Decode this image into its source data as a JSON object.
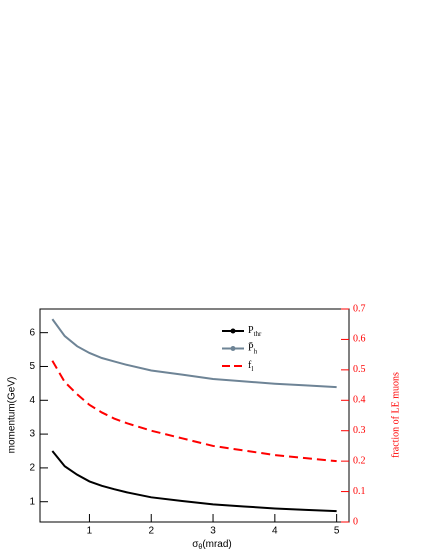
{
  "chart_data": {
    "type": "line",
    "x_label": "σ",
    "x_label_sub": "θ",
    "x_label_unit": "(mrad)",
    "y_label": "momentum(GeV)",
    "y2_label": "fraction of LE muons",
    "x": [
      0.4,
      0.6,
      0.8,
      1,
      1.2,
      1.4,
      1.6,
      2,
      2.5,
      3,
      3.5,
      4,
      4.5,
      5
    ],
    "xlim": [
      0.2,
      5.2
    ],
    "xticks": [
      1,
      2,
      3,
      4,
      5
    ],
    "ylim": [
      0.4,
      6.7
    ],
    "yticks": [
      1,
      2,
      3,
      4,
      5,
      6
    ],
    "y2lim": [
      0,
      0.7
    ],
    "y2ticks": [
      0,
      0.1,
      0.2,
      0.3,
      0.4,
      0.5,
      0.6,
      0.7
    ],
    "y2_color": "#ff0000",
    "series": [
      {
        "name": "P",
        "subscript": "thr",
        "color": "#000000",
        "values": [
          2.5,
          2.05,
          1.8,
          1.6,
          1.47,
          1.37,
          1.28,
          1.13,
          1.02,
          0.92,
          0.86,
          0.8,
          0.76,
          0.72
        ]
      },
      {
        "name": "P̄",
        "subscript": "h",
        "color": "#6e8496",
        "values": [
          6.4,
          5.9,
          5.6,
          5.4,
          5.25,
          5.15,
          5.05,
          4.88,
          4.76,
          4.63,
          4.56,
          4.49,
          4.44,
          4.39
        ]
      },
      {
        "name": "f",
        "subscript": "l",
        "color": "#ff0000",
        "axis": "y2",
        "dashed": true,
        "values": [
          0.53,
          0.46,
          0.42,
          0.385,
          0.36,
          0.34,
          0.325,
          0.3,
          0.275,
          0.25,
          0.235,
          0.22,
          0.21,
          0.2
        ]
      }
    ]
  }
}
